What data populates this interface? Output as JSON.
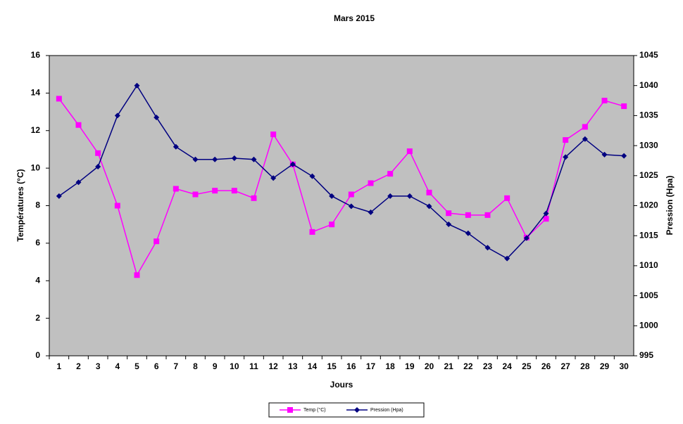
{
  "chart_data": {
    "type": "line",
    "title": "Mars 2015",
    "x_label": "Jours",
    "y_label": "Températures (°C)",
    "y2_label": "Pression (Hpa)",
    "categories": [
      "1",
      "2",
      "3",
      "4",
      "5",
      "6",
      "7",
      "8",
      "9",
      "10",
      "11",
      "12",
      "13",
      "14",
      "15",
      "16",
      "17",
      "18",
      "19",
      "20",
      "21",
      "22",
      "23",
      "24",
      "25",
      "26",
      "27",
      "28",
      "29",
      "30"
    ],
    "series": [
      {
        "name": "Temp (°C)",
        "color": "#ff00ff",
        "marker": "square",
        "values": [
          13.7,
          12.3,
          10.8,
          8.0,
          4.3,
          6.1,
          8.9,
          8.6,
          8.8,
          8.8,
          8.4,
          11.8,
          10.2,
          6.6,
          7.0,
          8.6,
          9.2,
          9.7,
          10.9,
          8.7,
          7.6,
          7.5,
          7.5,
          8.4,
          6.3,
          7.3,
          11.5,
          12.2,
          13.6,
          13.3
        ]
      },
      {
        "name": "Pression (Hpa)",
        "color": "#000080",
        "marker": "diamond",
        "axis": "y2",
        "values": [
          1021.6,
          1023.9,
          1026.5,
          1035.0,
          1040.0,
          1034.7,
          1029.8,
          1027.7,
          1027.7,
          1027.9,
          1027.7,
          1024.6,
          1026.9,
          1024.9,
          1021.6,
          1019.9,
          1018.9,
          1021.6,
          1021.6,
          1019.9,
          1016.9,
          1015.4,
          1013.0,
          1011.2,
          1014.6,
          1018.7,
          1028.1,
          1031.1,
          1028.5,
          1028.3
        ]
      }
    ],
    "ylim": [
      0,
      16
    ],
    "yticks": [
      0,
      2,
      4,
      6,
      8,
      10,
      12,
      14,
      16
    ],
    "y2lim": [
      995,
      1045
    ],
    "y2ticks": [
      995,
      1000,
      1005,
      1010,
      1015,
      1020,
      1025,
      1030,
      1035,
      1040,
      1045
    ],
    "grid": false,
    "legend": "bottom"
  }
}
